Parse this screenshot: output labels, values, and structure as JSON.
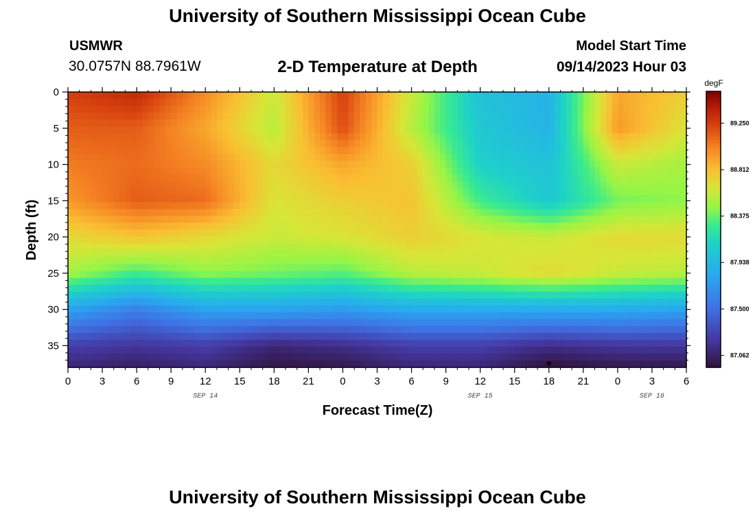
{
  "header": {
    "title": "University of Southern Mississippi Ocean Cube",
    "station_id": "USMWR",
    "station_coords": "30.0757N  88.7961W",
    "plot_subtitle": "2-D Temperature at Depth",
    "model_start_label": "Model Start Time",
    "model_start_value": "09/14/2023 Hour 03"
  },
  "footer": {
    "title": "University of Southern Mississippi Ocean Cube"
  },
  "chart_data": {
    "type": "heatmap",
    "title": "2-D Temperature at Depth",
    "xlabel": "Forecast Time(Z)",
    "ylabel": "Depth (ft)",
    "x_unit": "forecast hours since 09/14 00Z",
    "xlim": [
      0,
      54
    ],
    "ylim": [
      38,
      0
    ],
    "x_tick_values": [
      0,
      3,
      6,
      9,
      12,
      15,
      18,
      21,
      24,
      27,
      30,
      33,
      36,
      39,
      42,
      45,
      48,
      51,
      54
    ],
    "x_tick_labels": [
      "0",
      "3",
      "6",
      "9",
      "12",
      "15",
      "18",
      "21",
      "0",
      "3",
      "6",
      "9",
      "12",
      "15",
      "18",
      "21",
      "0",
      "3",
      "6"
    ],
    "y_tick_values": [
      0,
      5,
      10,
      15,
      20,
      25,
      30,
      35
    ],
    "y_tick_labels": [
      "0",
      "5",
      "10",
      "15",
      "20",
      "25",
      "30",
      "35"
    ],
    "date_labels": [
      {
        "text": "SEP 14",
        "x": 12
      },
      {
        "text": "SEP 15",
        "x": 36
      },
      {
        "text": "SEP 16",
        "x": 51
      }
    ],
    "colorbar": {
      "unit": "degF",
      "min": 86.95,
      "max": 89.55,
      "tick_values": [
        89.25,
        88.812,
        88.375,
        87.938,
        87.5,
        87.062
      ],
      "tick_labels": [
        "89.250",
        "88.812",
        "88.375",
        "87.938",
        "87.500",
        "87.062"
      ]
    },
    "x_grid": [
      0,
      6,
      12,
      18,
      24,
      30,
      36,
      42,
      48,
      54
    ],
    "y_grid": [
      0,
      5,
      10,
      15,
      20,
      25,
      30,
      35,
      38
    ],
    "values": [
      [
        89.25,
        89.35,
        89.0,
        88.6,
        89.25,
        88.6,
        88.0,
        87.9,
        88.9,
        88.75
      ],
      [
        89.15,
        89.15,
        88.9,
        88.55,
        89.2,
        88.55,
        88.05,
        87.9,
        88.95,
        88.65
      ],
      [
        89.05,
        89.1,
        89.0,
        88.7,
        88.9,
        88.75,
        88.1,
        88.0,
        88.6,
        88.5
      ],
      [
        88.95,
        89.15,
        89.1,
        88.65,
        88.75,
        88.8,
        88.3,
        88.05,
        88.4,
        88.45
      ],
      [
        88.7,
        88.8,
        88.7,
        88.6,
        88.65,
        88.75,
        88.65,
        88.6,
        88.7,
        88.7
      ],
      [
        88.5,
        88.3,
        88.45,
        88.4,
        88.35,
        88.55,
        88.6,
        88.7,
        88.6,
        88.55
      ],
      [
        87.8,
        87.6,
        87.8,
        87.8,
        87.75,
        87.85,
        87.85,
        87.85,
        87.85,
        87.8
      ],
      [
        87.25,
        87.2,
        87.25,
        87.1,
        87.15,
        87.25,
        87.25,
        87.15,
        87.2,
        87.2
      ],
      [
        87.1,
        87.05,
        87.1,
        86.98,
        87.0,
        87.1,
        87.1,
        86.95,
        87.0,
        87.0
      ]
    ],
    "marker": {
      "x": 42,
      "y": 37.6
    }
  }
}
